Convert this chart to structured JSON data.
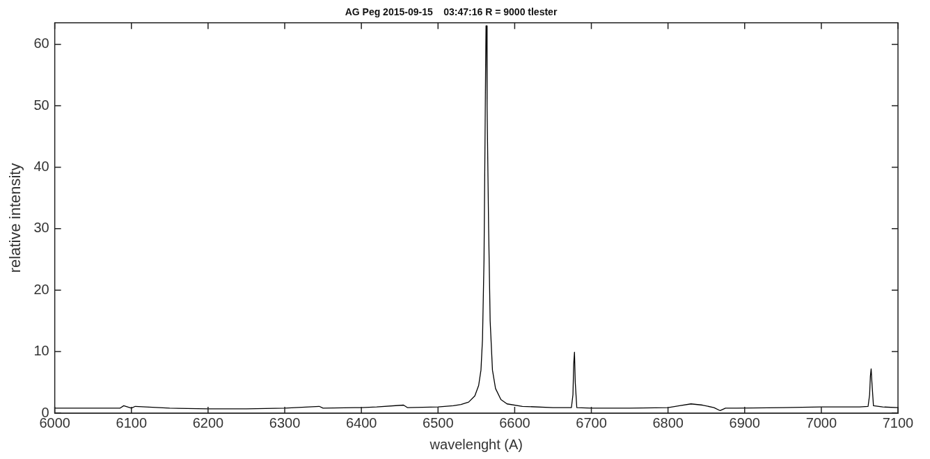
{
  "chart_data": {
    "type": "line",
    "title": "AG Peg 2015-09-15    03:47:16 R = 9000 tlester",
    "xlabel": "wavelenght (A)",
    "ylabel": "relative intensity",
    "series": [
      {
        "color": "#000000",
        "x": [
          6000,
          6040,
          6085,
          6090,
          6100,
          6105,
          6150,
          6200,
          6250,
          6300,
          6345,
          6350,
          6400,
          6420,
          6455,
          6460,
          6500,
          6520,
          6530,
          6540,
          6548,
          6553,
          6556,
          6558,
          6560,
          6561,
          6562,
          6562.6,
          6563.4,
          6564,
          6566,
          6568,
          6571,
          6575,
          6582,
          6590,
          6610,
          6650,
          6674,
          6676,
          6677,
          6678,
          6679,
          6681,
          6700,
          6750,
          6800,
          6815,
          6830,
          6845,
          6860,
          6868,
          6875,
          6890,
          6950,
          7000,
          7050,
          7061,
          7063,
          7064,
          7065,
          7066,
          7068,
          7080,
          7100
        ],
        "values": [
          0.8,
          0.8,
          0.8,
          1.2,
          0.8,
          1.1,
          0.8,
          0.7,
          0.7,
          0.8,
          1.1,
          0.8,
          0.9,
          1.0,
          1.3,
          0.9,
          1.0,
          1.2,
          1.4,
          1.8,
          2.8,
          4.5,
          7,
          12,
          25,
          40,
          55,
          63,
          63,
          50,
          30,
          15,
          7,
          4,
          2.2,
          1.5,
          1.1,
          0.9,
          0.9,
          3,
          8,
          9.9,
          5,
          0.9,
          0.8,
          0.8,
          0.9,
          1.2,
          1.5,
          1.3,
          0.9,
          0.4,
          0.8,
          0.8,
          0.9,
          1.0,
          1.0,
          1.1,
          3,
          6,
          7.2,
          5,
          1.2,
          1.0,
          0.9
        ]
      }
    ],
    "xlim": [
      6000,
      7100
    ],
    "xticks": [
      6000,
      6100,
      6200,
      6300,
      6400,
      6500,
      6600,
      6700,
      6800,
      6900,
      7000,
      7100
    ],
    "ylim": [
      0,
      63.5
    ],
    "yticks": [
      0,
      10,
      20,
      30,
      40,
      50,
      60
    ],
    "grid": false,
    "legend": false,
    "marker": "none",
    "line_style": "solid"
  }
}
